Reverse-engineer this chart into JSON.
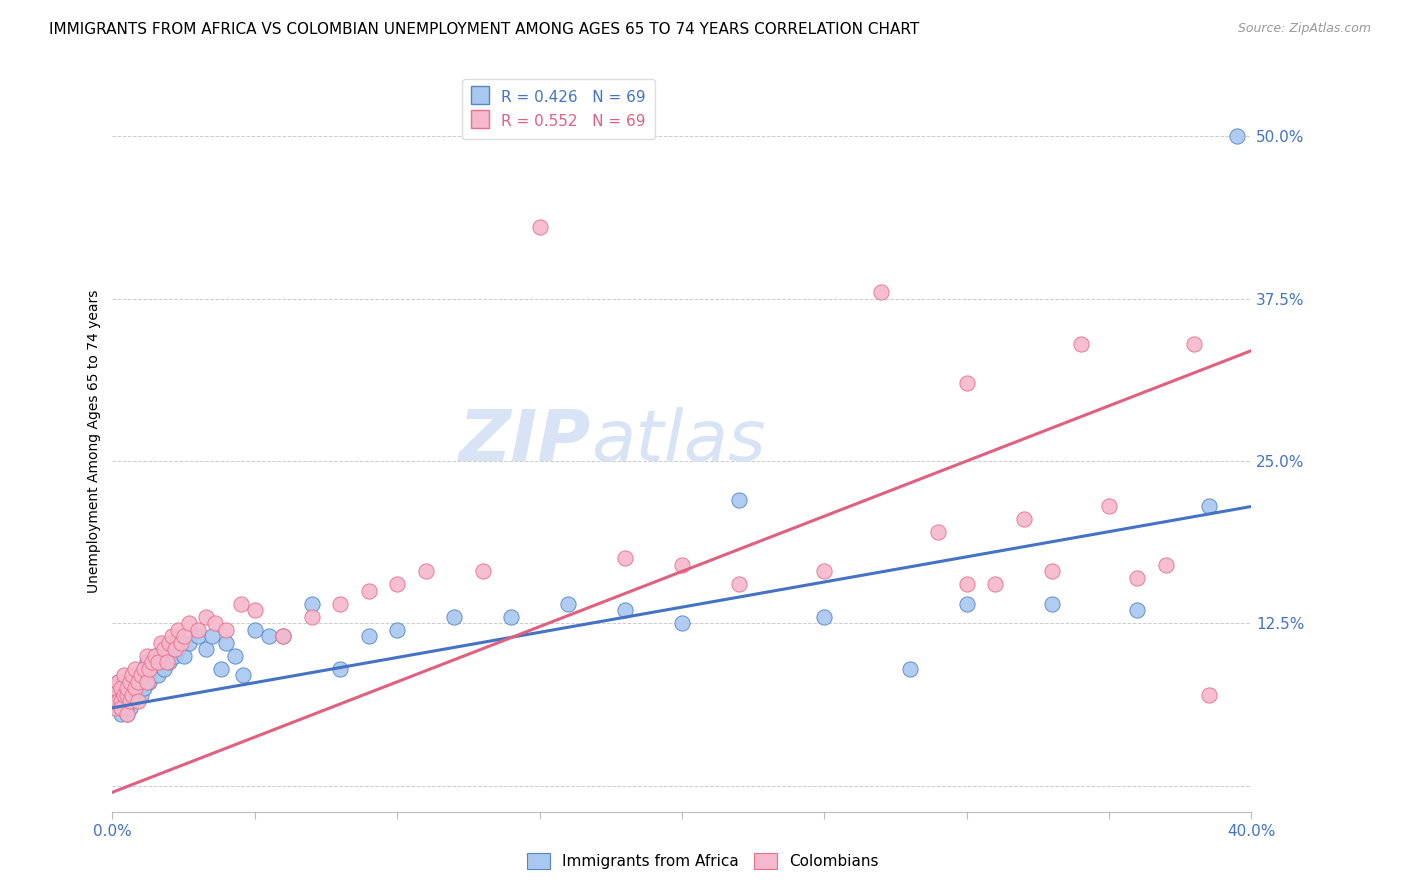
{
  "title": "IMMIGRANTS FROM AFRICA VS COLOMBIAN UNEMPLOYMENT AMONG AGES 65 TO 74 YEARS CORRELATION CHART",
  "source": "Source: ZipAtlas.com",
  "ylabel": "Unemployment Among Ages 65 to 74 years",
  "ylabel_ticks": [
    0.0,
    0.125,
    0.25,
    0.375,
    0.5
  ],
  "ylabel_tick_labels": [
    "",
    "12.5%",
    "25.0%",
    "37.5%",
    "50.0%"
  ],
  "xlim": [
    0.0,
    0.4
  ],
  "ylim": [
    -0.02,
    0.55
  ],
  "blue_R": "R = 0.426",
  "blue_N": "N = 69",
  "pink_R": "R = 0.552",
  "pink_N": "N = 69",
  "blue_color": "#A8C8F0",
  "pink_color": "#F5B8CC",
  "blue_edge_color": "#5585C8",
  "pink_edge_color": "#E8708A",
  "blue_line_color": "#4472C4",
  "pink_line_color": "#E06080",
  "watermark": "ZIPatlas",
  "watermark_color": "#D8E4F5",
  "blue_scatter_x": [
    0.001,
    0.001,
    0.002,
    0.002,
    0.002,
    0.003,
    0.003,
    0.003,
    0.004,
    0.004,
    0.004,
    0.005,
    0.005,
    0.005,
    0.006,
    0.006,
    0.006,
    0.007,
    0.007,
    0.008,
    0.008,
    0.009,
    0.009,
    0.01,
    0.01,
    0.011,
    0.011,
    0.012,
    0.012,
    0.013,
    0.014,
    0.015,
    0.016,
    0.017,
    0.018,
    0.019,
    0.02,
    0.021,
    0.022,
    0.023,
    0.025,
    0.027,
    0.03,
    0.033,
    0.035,
    0.038,
    0.04,
    0.043,
    0.046,
    0.05,
    0.055,
    0.06,
    0.07,
    0.08,
    0.09,
    0.1,
    0.12,
    0.14,
    0.16,
    0.18,
    0.2,
    0.22,
    0.25,
    0.28,
    0.3,
    0.33,
    0.36,
    0.385,
    0.395
  ],
  "blue_scatter_y": [
    0.065,
    0.075,
    0.07,
    0.06,
    0.08,
    0.065,
    0.075,
    0.055,
    0.07,
    0.06,
    0.08,
    0.065,
    0.075,
    0.055,
    0.07,
    0.08,
    0.06,
    0.075,
    0.065,
    0.08,
    0.07,
    0.075,
    0.085,
    0.07,
    0.08,
    0.09,
    0.075,
    0.085,
    0.095,
    0.08,
    0.09,
    0.1,
    0.085,
    0.095,
    0.09,
    0.1,
    0.095,
    0.11,
    0.1,
    0.105,
    0.1,
    0.11,
    0.115,
    0.105,
    0.115,
    0.09,
    0.11,
    0.1,
    0.085,
    0.12,
    0.115,
    0.115,
    0.14,
    0.09,
    0.115,
    0.12,
    0.13,
    0.13,
    0.14,
    0.135,
    0.125,
    0.22,
    0.13,
    0.09,
    0.14,
    0.14,
    0.135,
    0.215,
    0.5
  ],
  "pink_scatter_x": [
    0.001,
    0.001,
    0.002,
    0.002,
    0.003,
    0.003,
    0.003,
    0.004,
    0.004,
    0.005,
    0.005,
    0.005,
    0.006,
    0.006,
    0.007,
    0.007,
    0.008,
    0.008,
    0.009,
    0.009,
    0.01,
    0.011,
    0.012,
    0.012,
    0.013,
    0.014,
    0.015,
    0.016,
    0.017,
    0.018,
    0.019,
    0.02,
    0.021,
    0.022,
    0.023,
    0.024,
    0.025,
    0.027,
    0.03,
    0.033,
    0.036,
    0.04,
    0.045,
    0.05,
    0.06,
    0.07,
    0.08,
    0.09,
    0.1,
    0.11,
    0.13,
    0.15,
    0.18,
    0.2,
    0.22,
    0.25,
    0.27,
    0.29,
    0.3,
    0.3,
    0.31,
    0.32,
    0.33,
    0.34,
    0.35,
    0.36,
    0.37,
    0.38,
    0.385
  ],
  "pink_scatter_y": [
    0.06,
    0.075,
    0.065,
    0.08,
    0.065,
    0.075,
    0.06,
    0.07,
    0.085,
    0.07,
    0.075,
    0.055,
    0.065,
    0.08,
    0.07,
    0.085,
    0.075,
    0.09,
    0.08,
    0.065,
    0.085,
    0.09,
    0.08,
    0.1,
    0.09,
    0.095,
    0.1,
    0.095,
    0.11,
    0.105,
    0.095,
    0.11,
    0.115,
    0.105,
    0.12,
    0.11,
    0.115,
    0.125,
    0.12,
    0.13,
    0.125,
    0.12,
    0.14,
    0.135,
    0.115,
    0.13,
    0.14,
    0.15,
    0.155,
    0.165,
    0.165,
    0.43,
    0.175,
    0.17,
    0.155,
    0.165,
    0.38,
    0.195,
    0.155,
    0.31,
    0.155,
    0.205,
    0.165,
    0.34,
    0.215,
    0.16,
    0.17,
    0.34,
    0.07
  ],
  "blue_trend_x": [
    0.0,
    0.4
  ],
  "blue_trend_y": [
    0.06,
    0.215
  ],
  "pink_trend_x": [
    0.0,
    0.4
  ],
  "pink_trend_y": [
    -0.005,
    0.335
  ],
  "title_fontsize": 11,
  "source_fontsize": 9,
  "axis_label_fontsize": 10,
  "tick_fontsize": 11,
  "legend_fontsize": 11,
  "watermark_fontsize": 52,
  "background_color": "#FFFFFF",
  "grid_color": "#CCCCCC",
  "right_tick_color": "#4472C4"
}
